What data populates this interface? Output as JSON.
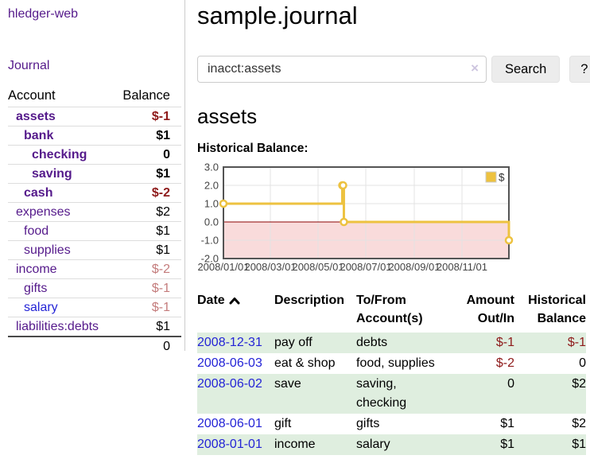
{
  "app": {
    "title": "hledger-web",
    "journal_link": "Journal"
  },
  "sidebar": {
    "headers": {
      "account": "Account",
      "balance": "Balance"
    },
    "accounts": [
      {
        "name": "assets",
        "balance": "$-1",
        "depth": 1,
        "bold": true,
        "tone": "neg-strong"
      },
      {
        "name": "bank",
        "balance": "$1",
        "depth": 2,
        "bold": true,
        "tone": ""
      },
      {
        "name": "checking",
        "balance": "0",
        "depth": 3,
        "bold": true,
        "tone": ""
      },
      {
        "name": "saving",
        "balance": "$1",
        "depth": 3,
        "bold": true,
        "tone": ""
      },
      {
        "name": "cash",
        "balance": "$-2",
        "depth": 2,
        "bold": true,
        "tone": "neg-strong"
      },
      {
        "name": "expenses",
        "balance": "$2",
        "depth": 1,
        "bold": false,
        "tone": ""
      },
      {
        "name": "food",
        "balance": "$1",
        "depth": 2,
        "bold": false,
        "tone": ""
      },
      {
        "name": "supplies",
        "balance": "$1",
        "depth": 2,
        "bold": false,
        "tone": ""
      },
      {
        "name": "income",
        "balance": "$-2",
        "depth": 1,
        "bold": false,
        "tone": "neg-soft"
      },
      {
        "name": "gifts",
        "balance": "$-1",
        "depth": 2,
        "bold": false,
        "tone": "neg-soft"
      },
      {
        "name": "salary",
        "balance": "$-1",
        "depth": 2,
        "bold": false,
        "tone": "neg-soft",
        "link": "blue"
      },
      {
        "name": "liabilities:debts",
        "balance": "$1",
        "depth": 1,
        "bold": false,
        "tone": ""
      }
    ],
    "total": "0"
  },
  "main": {
    "title": "sample.journal",
    "search": {
      "value": "inacct:assets",
      "clear_icon": "×",
      "search_button": "Search",
      "help_button": "?"
    },
    "account_title": "assets",
    "chart_label": "Historical Balance:"
  },
  "chart_data": {
    "type": "line",
    "title": "Historical Balance:",
    "series": [
      {
        "name": "$",
        "color": "#edc240",
        "steps": true,
        "points": [
          {
            "date": "2008-01-01",
            "value": 1
          },
          {
            "date": "2008-06-01",
            "value": 2
          },
          {
            "date": "2008-06-02",
            "value": 2
          },
          {
            "date": "2008-06-03",
            "value": 0
          },
          {
            "date": "2008-12-31",
            "value": -1
          }
        ]
      }
    ],
    "x_ticks": [
      "2008/01/01",
      "2008/03/01",
      "2008/05/01",
      "2008/07/01",
      "2008/09/01",
      "2008/11/01"
    ],
    "y_ticks": [
      "3.0",
      "2.0",
      "1.0",
      "0.0",
      "-1.0",
      "-2.0"
    ],
    "xlim": [
      "2008-01-01",
      "2008-12-31"
    ],
    "ylim": [
      -2,
      3
    ],
    "grid": true,
    "legend": {
      "label": "$",
      "position": "top-right"
    },
    "negative_fill": "#f9dbdb",
    "zero_line_color": "#8b0000"
  },
  "register": {
    "headers": [
      "Date",
      "Description",
      "To/From Account(s)",
      "Amount Out/In",
      "Historical Balance"
    ],
    "sort": {
      "column": "Date",
      "direction": "ascending"
    },
    "rows": [
      {
        "date": "2008-12-31",
        "description": "pay off",
        "accounts": "debts",
        "amount": "$-1",
        "balance": "$-1"
      },
      {
        "date": "2008-06-03",
        "description": "eat & shop",
        "accounts": "food, supplies",
        "amount": "$-2",
        "balance": "0"
      },
      {
        "date": "2008-06-02",
        "description": "save",
        "accounts": "saving, checking",
        "amount": "0",
        "balance": "$2"
      },
      {
        "date": "2008-06-01",
        "description": "gift",
        "accounts": "gifts",
        "amount": "$1",
        "balance": "$2"
      },
      {
        "date": "2008-01-01",
        "description": "income",
        "accounts": "salary",
        "amount": "$1",
        "balance": "$1"
      }
    ]
  },
  "colors": {
    "link_purple": "#551a8b",
    "link_blue": "#2424d6",
    "negative_strong": "#8e1a1a",
    "negative_soft": "#c47c7c",
    "row_stripe_green": "#dfeedf",
    "chart_line": "#edc240",
    "chart_negative_fill": "#f9dbdb",
    "chart_zero_line": "#8b0000"
  }
}
